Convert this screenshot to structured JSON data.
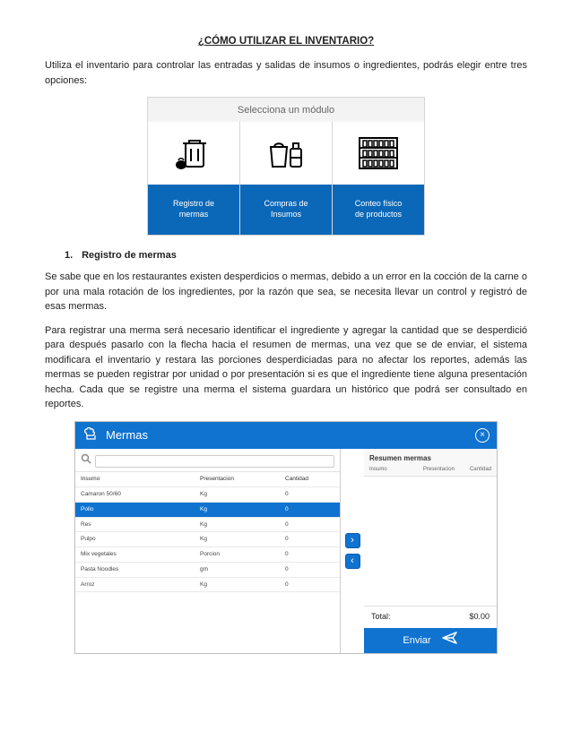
{
  "colors": {
    "brand_blue": "#1073d0",
    "module_blue": "#0b68b8",
    "header_gray": "#f3f3f3"
  },
  "doc": {
    "title": "¿CÓMO UTILIZAR EL INVENTARIO?",
    "intro": "Utiliza el inventario para controlar las entradas y salidas de insumos o ingredientes, podrás elegir entre tres opciones:",
    "modules_heading": "Selecciona un módulo",
    "modules": [
      {
        "label": "Registro de\nmermas",
        "icon": "trash"
      },
      {
        "label": "Compras de\nInsumos",
        "icon": "bag-bottle"
      },
      {
        "label": "Conteo físico\nde productos",
        "icon": "shelf"
      }
    ],
    "section1_num": "1.",
    "section1_title": "Registro de mermas",
    "p1": "Se sabe que en los restaurantes existen desperdicios o mermas, debido a un error en la cocción de la carne o por una mala rotación de los ingredientes, por la razón que sea, se necesita llevar un control y  registró de esas mermas.",
    "p2": "Para registrar una merma será necesario identificar el ingrediente y agregar la cantidad que se desperdició para después pasarlo con la flecha hacia el resumen de mermas, una vez que se de enviar, el sistema modificara el inventario y restara las porciones desperdiciadas para no afectar los reportes, además las mermas se pueden registrar por unidad o por presentación si es que el ingrediente tiene alguna presentación hecha. Cada que se registre una merma el sistema guardara un histórico que podrá ser consultado en reportes."
  },
  "app": {
    "title": "Mermas",
    "close_glyph": "×",
    "search_placeholder": "",
    "columns": {
      "c1": "Insumo",
      "c2": "Presentacion",
      "c3": "Cantidad"
    },
    "rows": [
      {
        "c1": "Camaron 50/60",
        "c2": "Kg",
        "c3": "0",
        "sel": false
      },
      {
        "c1": "Pollo",
        "c2": "Kg",
        "c3": "0",
        "sel": true
      },
      {
        "c1": "Res",
        "c2": "Kg",
        "c3": "0",
        "sel": false
      },
      {
        "c1": "Pulpo",
        "c2": "Kg",
        "c3": "0",
        "sel": false
      },
      {
        "c1": "Mix vegetales",
        "c2": "Porcion",
        "c3": "0",
        "sel": false
      },
      {
        "c1": "Pasta Noodles",
        "c2": "gm",
        "c3": "0",
        "sel": false
      },
      {
        "c1": "Arroz",
        "c2": "Kg",
        "c3": "0",
        "sel": false
      }
    ],
    "summary": {
      "title": "Resumen mermas",
      "columns": {
        "c1": "Insumo",
        "c2": "Presentacion",
        "c3": "Cantidad"
      },
      "total_label": "Total:",
      "total_value": "$0.00"
    },
    "send_label": "Enviar"
  }
}
